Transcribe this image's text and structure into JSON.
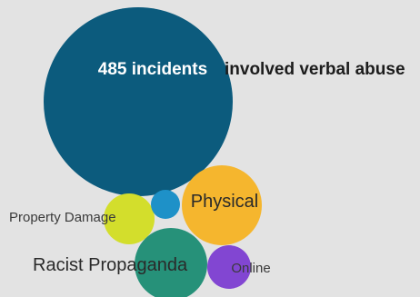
{
  "chart_data": {
    "type": "bubble",
    "title": "",
    "colors": {
      "background": "#e3e3e3"
    },
    "series": [
      {
        "name": "Verbal Abuse",
        "value": 485,
        "label_value": "485 incidents",
        "label_text": "involved verbal abuse",
        "color": "#0c5b7d"
      },
      {
        "name": "Physical",
        "color": "#f5b62e"
      },
      {
        "name": "Property Damage",
        "color": "#d3de2c"
      },
      {
        "name": "Racist Propaganda",
        "color": "#269179"
      },
      {
        "name": "Online",
        "color": "#8246d2"
      },
      {
        "name": "",
        "color": "#1e91c8"
      }
    ]
  }
}
